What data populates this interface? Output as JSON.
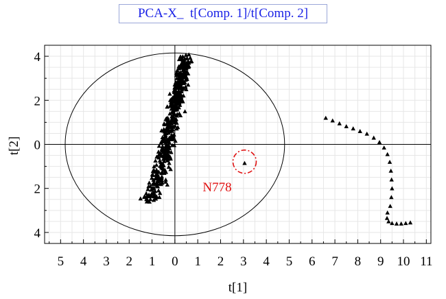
{
  "chart_data": {
    "type": "scatter",
    "title": "PCA-X_  t[Comp. 1]/t[Comp. 2]",
    "xlabel": "t[1]",
    "ylabel": "t[2]",
    "xlim": [
      -5.7,
      11.2
    ],
    "ylim": [
      -4.5,
      4.5
    ],
    "x_ticks": [
      -5,
      -4,
      -3,
      -2,
      -1,
      0,
      1,
      2,
      3,
      4,
      5,
      6,
      7,
      8,
      9,
      10,
      11
    ],
    "x_tick_labels": [
      "5",
      "4",
      "3",
      "2",
      "1",
      "0",
      "1",
      "2",
      "3",
      "4",
      "5",
      "6",
      "7",
      "8",
      "9",
      "10",
      "11"
    ],
    "y_ticks": [
      4,
      2,
      0,
      -2,
      -4
    ],
    "y_tick_labels": [
      "4",
      "2",
      "0",
      "2",
      "4"
    ],
    "grid": true,
    "ellipse": {
      "center": [
        0,
        0
      ],
      "semi_x": 4.8,
      "semi_y": 4.15
    },
    "reference_lines": {
      "x": 0,
      "y": 0
    },
    "marker": "triangle",
    "main_cluster": {
      "shape": "band",
      "count": 500,
      "spine": [
        [
          -1.1,
          -2.6
        ],
        [
          -0.6,
          -1.0
        ],
        [
          -0.3,
          0.3
        ],
        [
          0.0,
          1.6
        ],
        [
          0.25,
          2.8
        ],
        [
          0.5,
          3.9
        ]
      ],
      "spread_x": 0.32,
      "spread_y": 0.3
    },
    "trajectory": [
      [
        6.6,
        1.2
      ],
      [
        6.9,
        1.08
      ],
      [
        7.2,
        0.95
      ],
      [
        7.5,
        0.82
      ],
      [
        7.8,
        0.72
      ],
      [
        8.1,
        0.6
      ],
      [
        8.4,
        0.48
      ],
      [
        8.7,
        0.3
      ],
      [
        8.95,
        0.1
      ],
      [
        9.15,
        -0.15
      ],
      [
        9.3,
        -0.45
      ],
      [
        9.4,
        -0.8
      ],
      [
        9.45,
        -1.2
      ],
      [
        9.48,
        -1.6
      ],
      [
        9.5,
        -2.0
      ],
      [
        9.47,
        -2.4
      ],
      [
        9.42,
        -2.8
      ],
      [
        9.3,
        -3.1
      ],
      [
        9.28,
        -3.35
      ],
      [
        9.35,
        -3.5
      ],
      [
        9.5,
        -3.58
      ],
      [
        9.7,
        -3.6
      ],
      [
        9.9,
        -3.6
      ],
      [
        10.1,
        -3.58
      ],
      [
        10.3,
        -3.55
      ]
    ],
    "outlier": {
      "label": "N778",
      "x": 3.05,
      "y": -0.85
    },
    "highlight_color": "#e01010",
    "title_color": "#1a22e6"
  }
}
